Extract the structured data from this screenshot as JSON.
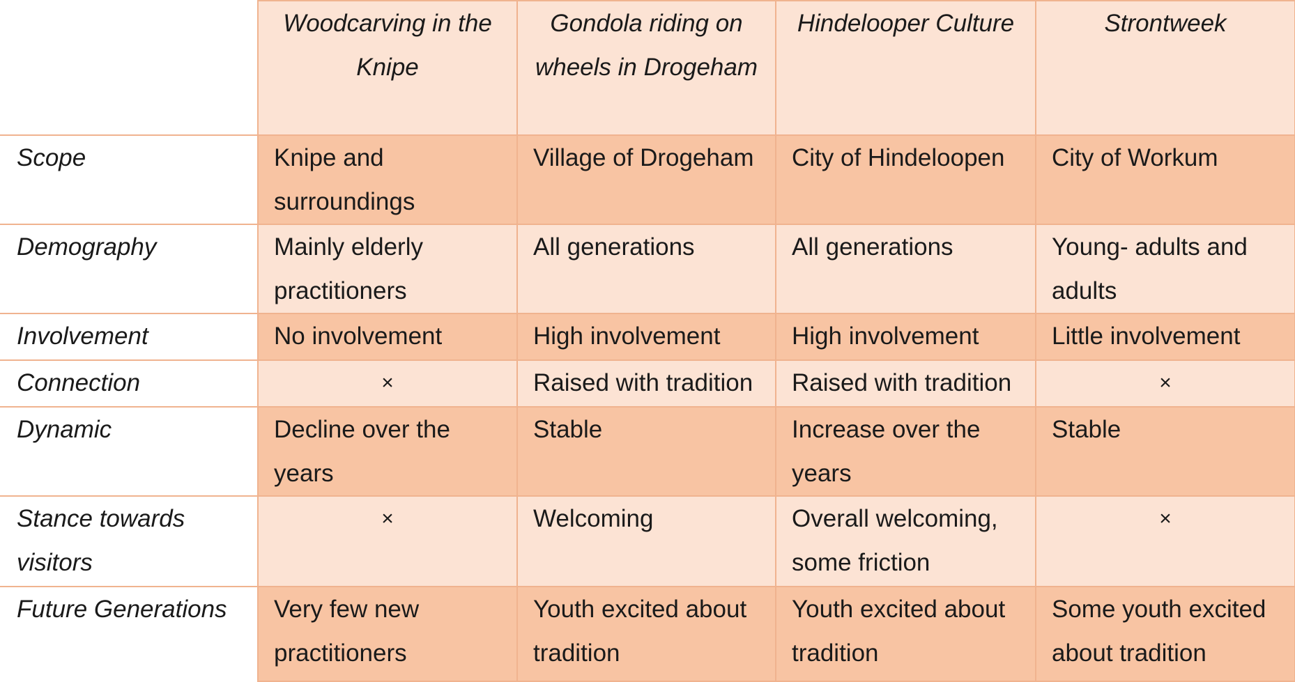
{
  "columns": [
    "Woodcarving in the Knipe",
    "Gondola riding on wheels in Drogeham",
    "Hindelooper Culture",
    "Strontweek"
  ],
  "rows": [
    {
      "label": "Scope",
      "cells": [
        "Knipe and surroundings",
        "Village of Drogeham",
        "City of Hindeloopen",
        "City of Workum"
      ]
    },
    {
      "label": "Demography",
      "cells": [
        "Mainly elderly practitioners",
        "All generations",
        "All generations",
        "Young- adults and adults"
      ]
    },
    {
      "label": "Involvement",
      "cells": [
        "No involvement",
        "High involvement",
        "High involvement",
        "Little involvement"
      ]
    },
    {
      "label": "Connection",
      "cells": [
        "×",
        "Raised with tradition",
        "Raised with tradition",
        "×"
      ]
    },
    {
      "label": "Dynamic",
      "cells": [
        "Decline over the years",
        "Stable",
        "Increase over the years",
        "Stable"
      ]
    },
    {
      "label": "Stance towards visitors",
      "cells": [
        "×",
        "Welcoming",
        "Overall welcoming, some friction",
        "×"
      ]
    },
    {
      "label": "Future Generations",
      "cells": [
        "Very few new practitioners",
        "Youth excited about tradition",
        "Youth excited about tradition",
        "Some youth excited about tradition"
      ]
    }
  ],
  "colors": {
    "dark_row": "#f8c4a3",
    "light_row": "#fce3d4",
    "grid": "#f0b38f"
  }
}
